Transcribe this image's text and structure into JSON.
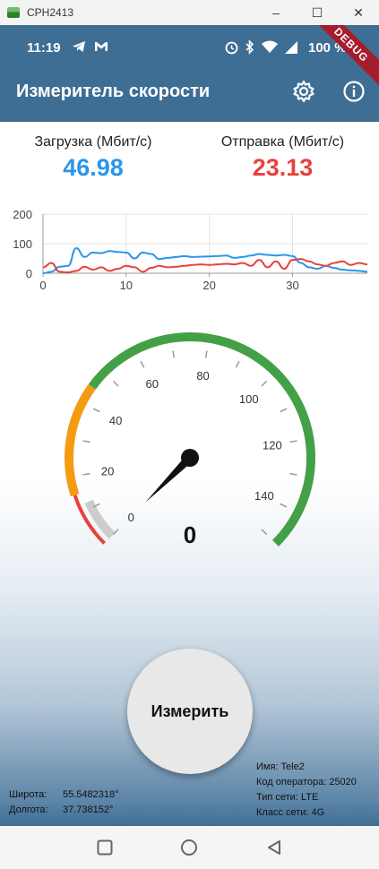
{
  "window": {
    "title": "CPH2413"
  },
  "status_bar": {
    "time": "11:19",
    "battery": "100 %"
  },
  "app_bar": {
    "title": "Измеритель скорости",
    "debug_banner": "DEBUG"
  },
  "download": {
    "label": "Загрузка (Мбит/с)",
    "value": "46.98",
    "color": "#2b95e9"
  },
  "upload": {
    "label": "Отправка (Мбит/с)",
    "value": "23.13",
    "color": "#e8413c"
  },
  "chart_data": {
    "type": "line",
    "xlim": [
      0,
      39
    ],
    "ylim": [
      0,
      200
    ],
    "x_ticks": [
      "0",
      "10",
      "20",
      "30"
    ],
    "y_ticks": [
      "200",
      "100",
      "0"
    ],
    "grid": true,
    "series": [
      {
        "color": "#2b95e9",
        "x": [
          0,
          1,
          2,
          3,
          4,
          5,
          6,
          7,
          8,
          9,
          10,
          11,
          12,
          13,
          14,
          15,
          16,
          17,
          18,
          19,
          20,
          21,
          22,
          23,
          24,
          25,
          26,
          27,
          28,
          29,
          30,
          31,
          32,
          33,
          34,
          35,
          36,
          37,
          38,
          39
        ],
        "values": [
          0,
          5,
          22,
          25,
          85,
          55,
          70,
          68,
          75,
          72,
          70,
          50,
          70,
          65,
          48,
          52,
          55,
          58,
          55,
          56,
          57,
          58,
          60,
          52,
          55,
          60,
          65,
          62,
          60,
          62,
          58,
          35,
          20,
          15,
          25,
          18,
          12,
          10,
          8,
          5
        ]
      },
      {
        "color": "#e8413c",
        "x": [
          0,
          1,
          2,
          3,
          4,
          5,
          6,
          7,
          8,
          9,
          10,
          11,
          12,
          13,
          14,
          15,
          16,
          17,
          18,
          19,
          20,
          21,
          22,
          23,
          24,
          25,
          26,
          27,
          28,
          29,
          30,
          31,
          32,
          33,
          34,
          35,
          36,
          37,
          38,
          39
        ],
        "values": [
          20,
          35,
          5,
          3,
          8,
          22,
          12,
          20,
          8,
          15,
          25,
          20,
          5,
          18,
          25,
          20,
          22,
          25,
          28,
          30,
          28,
          30,
          32,
          30,
          35,
          25,
          45,
          20,
          40,
          15,
          45,
          48,
          40,
          30,
          25,
          35,
          40,
          28,
          35,
          30
        ]
      }
    ]
  },
  "gauge": {
    "value": 0,
    "value_label": "0",
    "min": 0,
    "max": 150,
    "tick_labels": [
      "0",
      "20",
      "40",
      "60",
      "80",
      "100",
      "120",
      "140"
    ],
    "zone_colors": {
      "red": "#e8413c",
      "orange": "#f39c12",
      "green": "#43a047",
      "idle": "#cccccc"
    }
  },
  "measure_button": {
    "label": "Измерить"
  },
  "location": {
    "lat_label": "Широта:",
    "lat_value": "55.5482318°",
    "lon_label": "Долгота:",
    "lon_value": "37.738152°"
  },
  "network": {
    "name": "Имя: Tele2",
    "operator_code": "Код оператора: 25020",
    "net_type": "Тип сети: LTE",
    "net_class": "Класс сети: 4G"
  }
}
